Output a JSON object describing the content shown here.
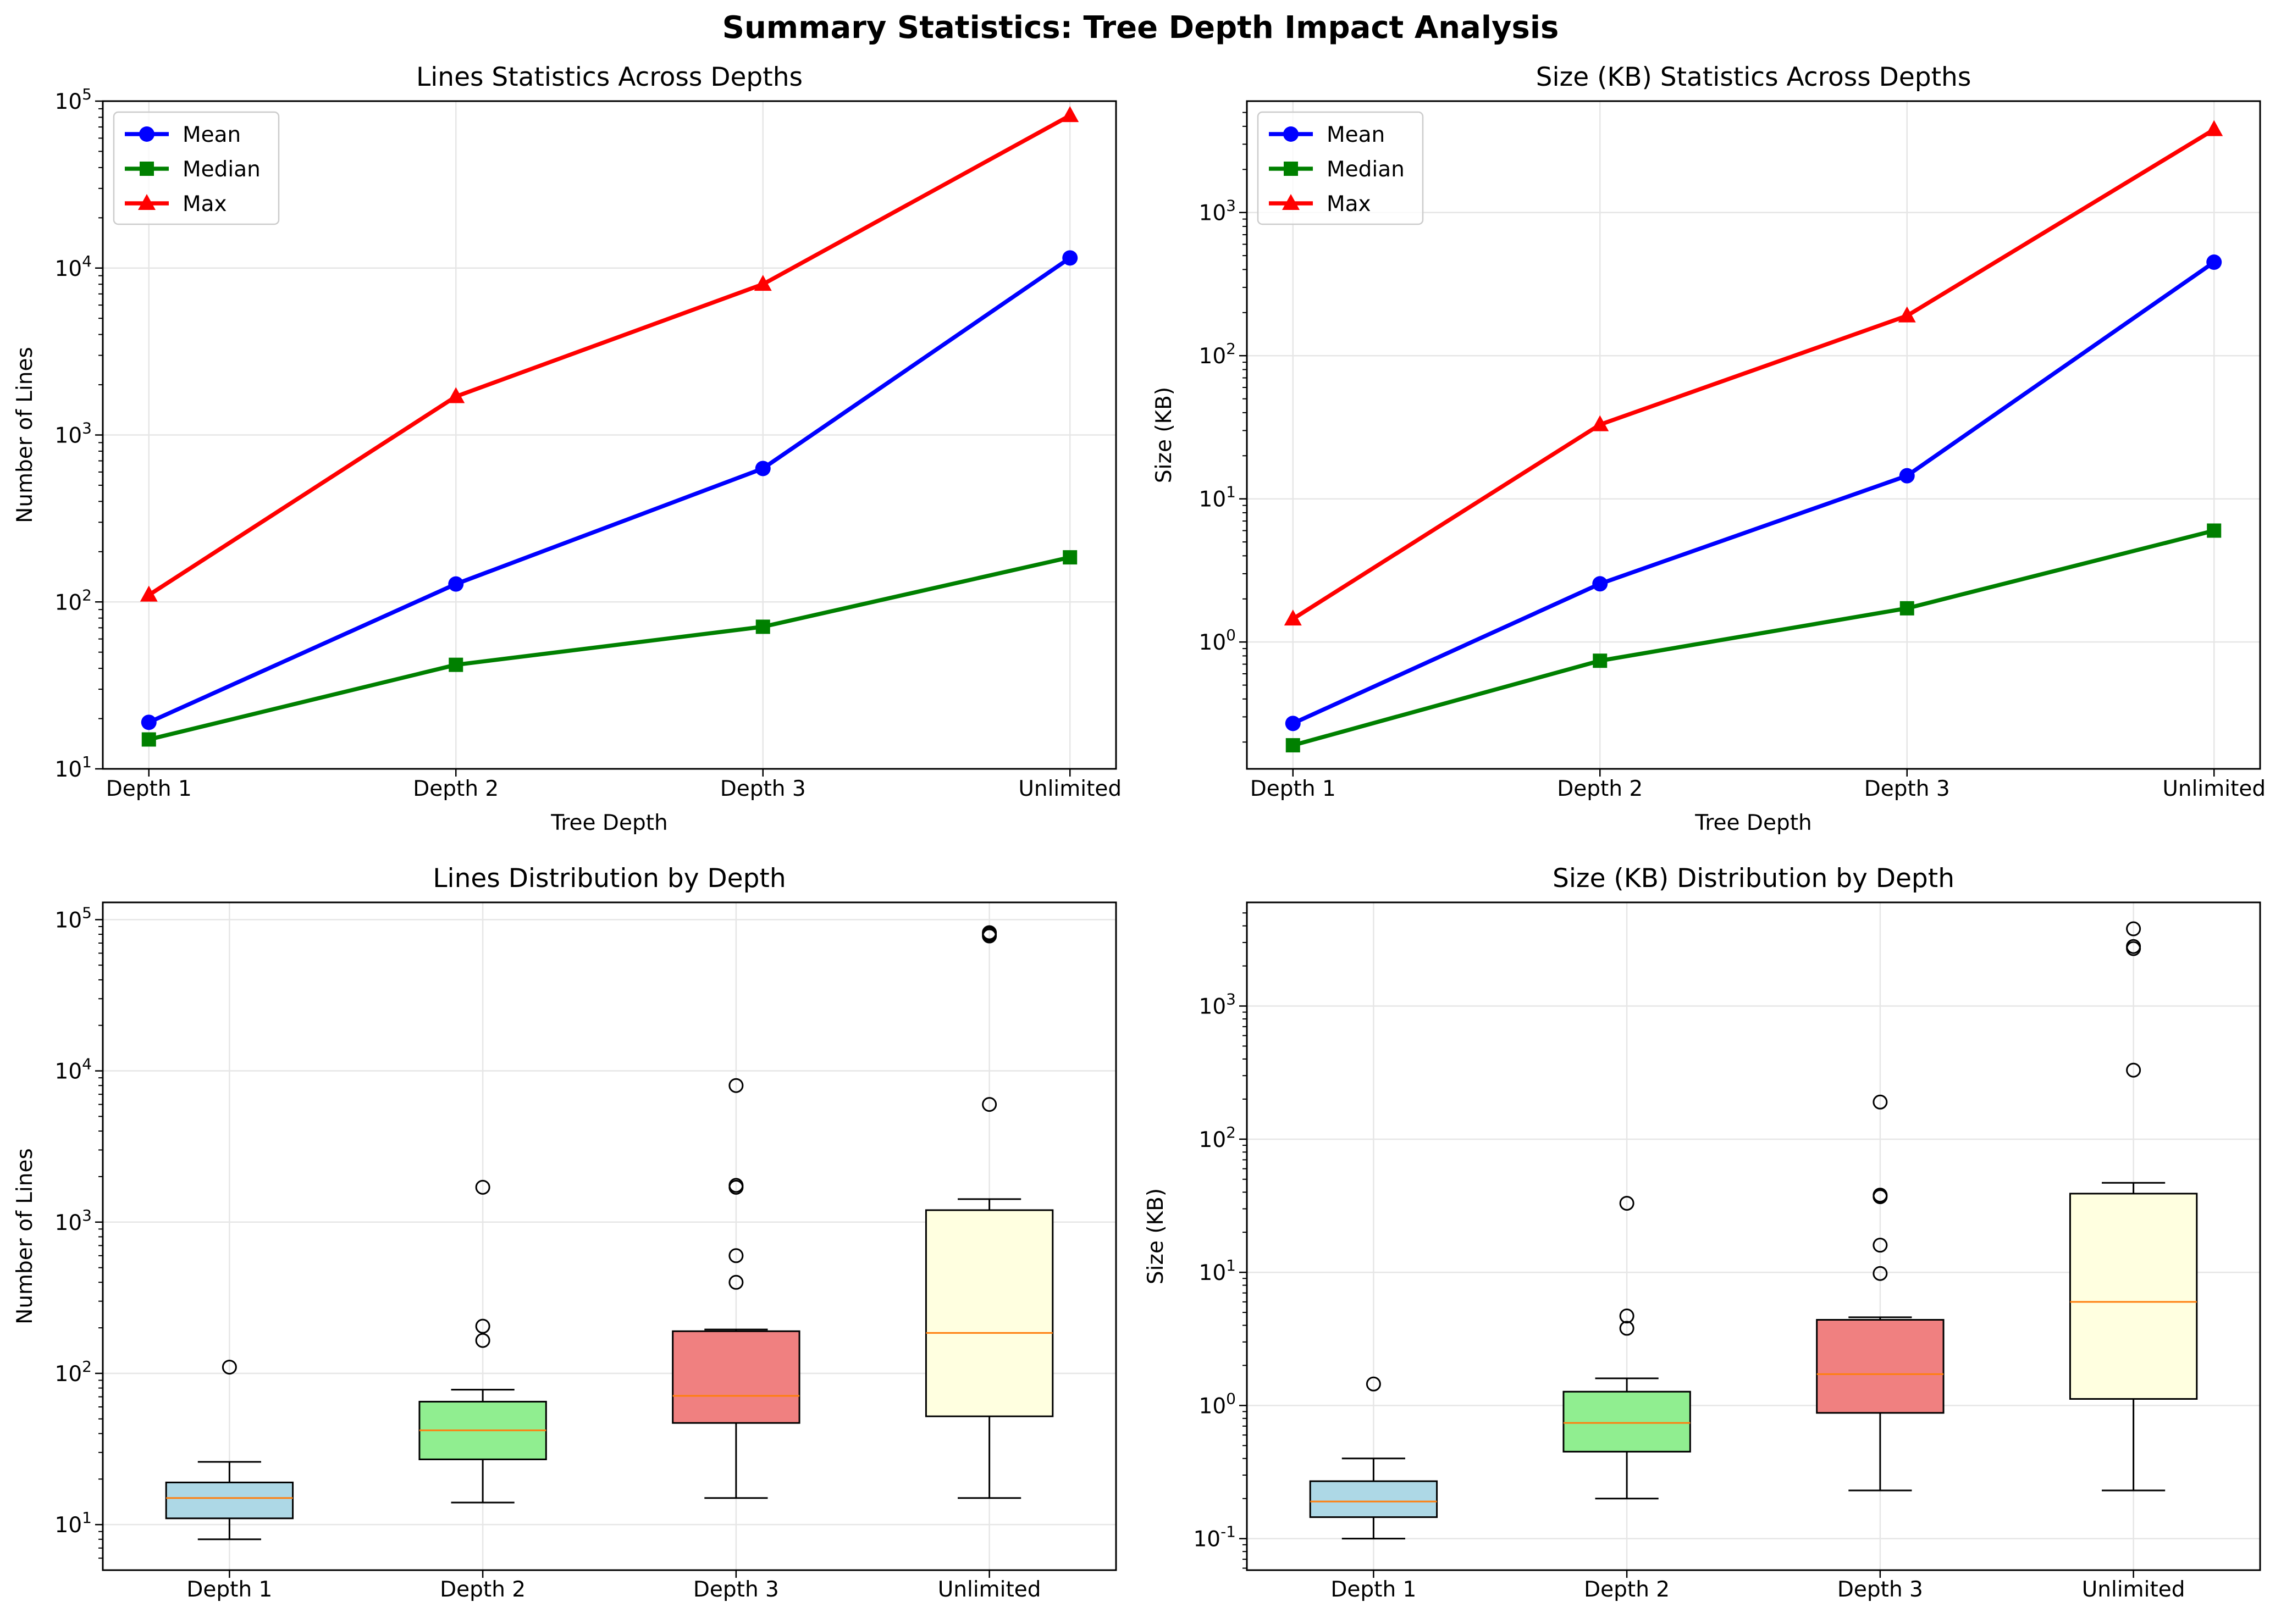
{
  "suptitle": "Summary Statistics: Tree Depth Impact Analysis",
  "colors": {
    "mean": "#0000ff",
    "median": "#008000",
    "max": "#ff0000",
    "median_line": "#ff7f0e",
    "box_fills": [
      "#add8e6",
      "#90ee90",
      "#f08080",
      "#ffffe0"
    ]
  },
  "chart_data": [
    {
      "type": "line",
      "title": "Lines Statistics Across Depths",
      "xlabel": "Tree Depth",
      "ylabel": "Number of Lines",
      "yscale": "log",
      "ylim": [
        10,
        100000
      ],
      "yticks": [
        10,
        100,
        1000,
        10000,
        100000
      ],
      "grid": true,
      "legend": "top-left",
      "categories": [
        "Depth 1",
        "Depth 2",
        "Depth 3",
        "Unlimited"
      ],
      "series": [
        {
          "name": "Mean",
          "marker": "circle",
          "values": [
            19,
            128,
            630,
            11500
          ]
        },
        {
          "name": "Median",
          "marker": "square",
          "values": [
            15,
            42,
            71,
            185
          ]
        },
        {
          "name": "Max",
          "marker": "triangle",
          "values": [
            110,
            1700,
            8000,
            82000
          ]
        }
      ]
    },
    {
      "type": "line",
      "title": "Size (KB) Statistics Across Depths",
      "xlabel": "Tree Depth",
      "ylabel": "Size (KB)",
      "yscale": "log",
      "ylim": [
        0.13,
        6000
      ],
      "yticks": [
        1,
        10,
        100,
        1000
      ],
      "grid": true,
      "legend": "top-left",
      "categories": [
        "Depth 1",
        "Depth 2",
        "Depth 3",
        "Unlimited"
      ],
      "series": [
        {
          "name": "Mean",
          "marker": "circle",
          "values": [
            0.27,
            2.55,
            14.5,
            450
          ]
        },
        {
          "name": "Median",
          "marker": "square",
          "values": [
            0.19,
            0.74,
            1.72,
            6.0
          ]
        },
        {
          "name": "Max",
          "marker": "triangle",
          "values": [
            1.45,
            33,
            190,
            3800
          ]
        }
      ]
    },
    {
      "type": "box",
      "title": "Lines Distribution by Depth",
      "xlabel": "",
      "ylabel": "Number of Lines",
      "yscale": "log",
      "ylim": [
        5,
        130000
      ],
      "yticks": [
        10,
        100,
        1000,
        10000,
        100000
      ],
      "grid": true,
      "categories": [
        "Depth 1",
        "Depth 2",
        "Depth 3",
        "Unlimited"
      ],
      "boxes": [
        {
          "whislo": 8,
          "q1": 11,
          "med": 15,
          "q3": 19,
          "whishi": 26,
          "fliers": [
            110
          ]
        },
        {
          "whislo": 14,
          "q1": 27,
          "med": 42,
          "q3": 65,
          "whishi": 78,
          "fliers": [
            165,
            205,
            1700
          ]
        },
        {
          "whislo": 15,
          "q1": 47,
          "med": 71,
          "q3": 190,
          "whishi": 195,
          "fliers": [
            400,
            600,
            1700,
            1750,
            8000
          ]
        },
        {
          "whislo": 15,
          "q1": 52,
          "med": 185,
          "q3": 1200,
          "whishi": 1420,
          "fliers": [
            6000,
            78000,
            80000,
            82000
          ]
        }
      ]
    },
    {
      "type": "box",
      "title": "Size (KB) Distribution by Depth",
      "xlabel": "",
      "ylabel": "Size (KB)",
      "yscale": "log",
      "ylim": [
        0.058,
        6000
      ],
      "yticks": [
        0.1,
        1,
        10,
        100,
        1000
      ],
      "grid": true,
      "categories": [
        "Depth 1",
        "Depth 2",
        "Depth 3",
        "Unlimited"
      ],
      "boxes": [
        {
          "whislo": 0.1,
          "q1": 0.145,
          "med": 0.19,
          "q3": 0.27,
          "whishi": 0.4,
          "fliers": [
            1.45
          ]
        },
        {
          "whislo": 0.2,
          "q1": 0.45,
          "med": 0.74,
          "q3": 1.27,
          "whishi": 1.6,
          "fliers": [
            3.8,
            4.7,
            33
          ]
        },
        {
          "whislo": 0.23,
          "q1": 0.88,
          "med": 1.72,
          "q3": 4.4,
          "whishi": 4.6,
          "fliers": [
            9.8,
            16,
            37,
            38,
            190
          ]
        },
        {
          "whislo": 0.23,
          "q1": 1.12,
          "med": 6.0,
          "q3": 39,
          "whishi": 47,
          "fliers": [
            330,
            2700,
            2800,
            3800
          ]
        }
      ]
    }
  ]
}
